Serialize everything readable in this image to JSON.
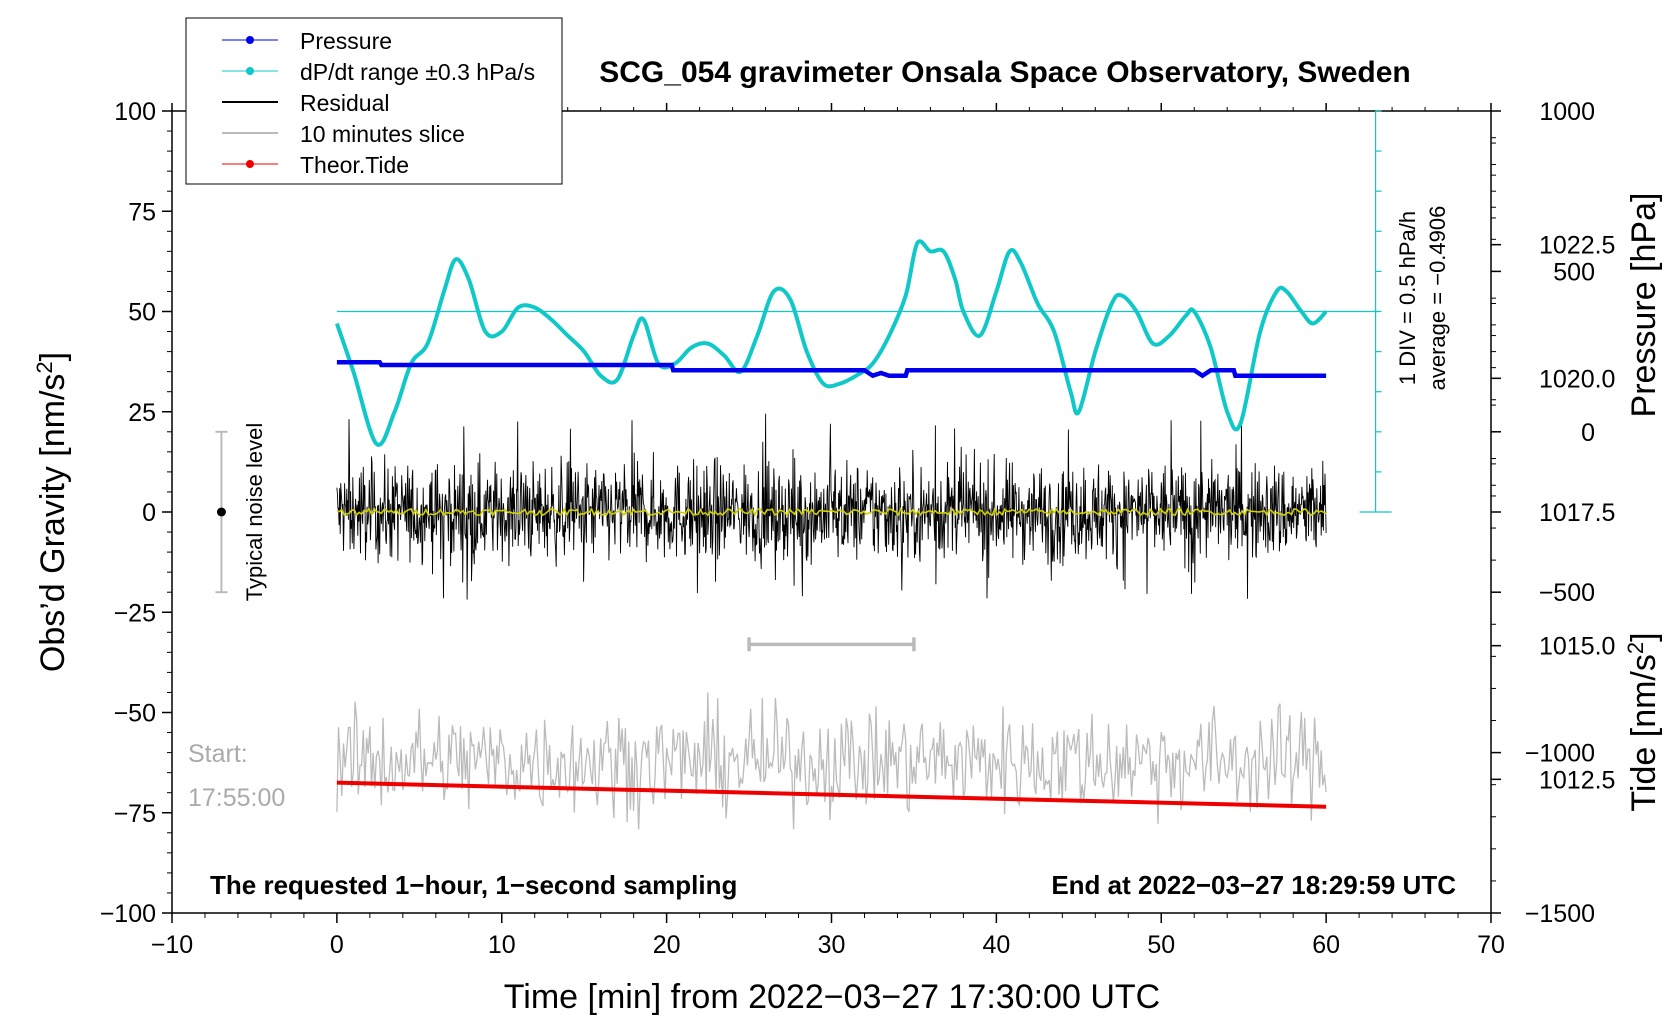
{
  "chart_data": {
    "type": "line",
    "title": "SCG_054 gravimeter Onsala Space Observatory, Sweden",
    "xlabel": "Time [min] from 2022−03−27 17:30:00 UTC",
    "ylabel_left": "Obs’d Gravity [nm/s²]",
    "ylabel_left_main": "Obs’d Gravity [nm/s",
    "ylabel_left_sup": "2",
    "ylabel_left_end": "]",
    "ylabel_right_pressure": "Pressure [hPa]",
    "ylabel_right_tide": "Tide [nm/s²]",
    "ylabel_right_tide_main": "Tide [nm/s",
    "ylabel_right_tide_sup": "2",
    "ylabel_right_tide_end": "]",
    "xlim": [
      -10,
      70
    ],
    "ylim": [
      -100,
      100
    ],
    "pressure_ylim": [
      1010.0,
      1025.0
    ],
    "tide_ylim": [
      -1500,
      1000
    ],
    "x_ticks": [
      -10,
      0,
      10,
      20,
      30,
      40,
      50,
      60,
      70
    ],
    "x_tick_labels": [
      "−10",
      "0",
      "10",
      "20",
      "30",
      "40",
      "50",
      "60",
      "70"
    ],
    "y_ticks": [
      100,
      75,
      50,
      25,
      0,
      -25,
      -50,
      -75,
      -100
    ],
    "y_tick_labels": [
      "100",
      "75",
      "50",
      "25",
      "0",
      "−25",
      "−50",
      "−75",
      "−100"
    ],
    "pressure_ticks": [
      1022.5,
      1020.0,
      1017.5,
      1015.0,
      1012.5
    ],
    "pressure_tick_labels": [
      "1022.5",
      "1020.0",
      "1017.5",
      "1015.0",
      "1012.5"
    ],
    "tide_ticks": [
      1000,
      500,
      0,
      -500,
      -1000,
      -1500
    ],
    "tide_tick_labels": [
      "1000",
      "500",
      "0",
      "−500",
      "−1000",
      "−1500"
    ],
    "legend": [
      {
        "label": "Pressure",
        "color": "#0000ee",
        "marker": true
      },
      {
        "label": "dP/dt range ±0.3 hPa/s",
        "color": "#10c8c8",
        "marker": true
      },
      {
        "label": "Residual",
        "color": "#000000",
        "marker": false
      },
      {
        "label": "10 minutes slice",
        "color": "#bbbbbb",
        "marker": false
      },
      {
        "label": "Theor.Tide",
        "color": "#ee0000",
        "marker": true
      }
    ],
    "series": [
      {
        "name": "Pressure",
        "color": "#0000ee",
        "x": [
          0,
          2.6,
          2.7,
          20.3,
          20.4,
          32,
          32.5,
          33,
          33.5,
          34.5,
          34.6,
          52,
          52.5,
          53,
          54.4,
          54.5,
          60
        ],
        "values": [
          1020.3,
          1020.3,
          1020.25,
          1020.25,
          1020.15,
          1020.15,
          1020.05,
          1020.1,
          1020.05,
          1020.05,
          1020.15,
          1020.15,
          1020.05,
          1020.15,
          1020.15,
          1020.05,
          1020.05
        ]
      },
      {
        "name": "dP/dt",
        "color": "#10c8c8",
        "reference_level": 50,
        "x": [
          0,
          1,
          2.4,
          3.5,
          4.5,
          5.5,
          6.5,
          7.2,
          8,
          9,
          10,
          11,
          12,
          13,
          14,
          15,
          16,
          17,
          18,
          18.6,
          19.5,
          20.5,
          21.5,
          22.5,
          23.5,
          24.5,
          25.5,
          26.5,
          27.5,
          28.5,
          29.5,
          30.5,
          31.5,
          32.5,
          33.5,
          34.5,
          35.2,
          36,
          36.8,
          37.5,
          38,
          39,
          40,
          40.8,
          41.5,
          42.5,
          43.5,
          44.5,
          45,
          46,
          47,
          47.6,
          48.5,
          49.5,
          50.5,
          51.5,
          52,
          53,
          54,
          54.8,
          56,
          57,
          57.6,
          58.5,
          59.2,
          60
        ],
        "values": [
          47,
          35,
          17,
          25,
          37,
          42,
          55,
          63,
          58,
          45,
          45,
          51,
          51,
          48,
          44,
          40,
          34,
          33,
          44,
          48,
          37,
          37,
          41,
          42,
          39,
          35,
          44,
          55,
          53,
          40,
          32,
          32,
          34,
          37,
          44,
          54,
          67,
          65,
          65,
          58,
          50,
          44,
          55,
          65,
          62,
          52,
          45,
          30,
          25,
          40,
          52,
          54,
          50,
          42,
          44,
          49,
          50,
          41,
          25,
          22,
          45,
          55,
          55,
          50,
          47,
          50
        ]
      },
      {
        "name": "Residual",
        "color": "#000000",
        "x_range": [
          0,
          60
        ],
        "noise_amplitude": 11,
        "max_spike": 25,
        "min_spike": -22
      },
      {
        "name": "Residual smoothed",
        "color": "#d0d000",
        "x_range": [
          0,
          60
        ],
        "values_level": 0
      },
      {
        "name": "10 minutes slice",
        "color": "#bbbbbb",
        "x_range": [
          0,
          60
        ],
        "center": -62,
        "amplitude_range": [
          -85,
          -45
        ]
      },
      {
        "name": "Theor.Tide",
        "color": "#ee0000",
        "x": [
          0,
          60
        ],
        "values": [
          -67.5,
          -73.5
        ]
      }
    ],
    "noise_bar": {
      "label": "Typical noise level",
      "x": -7,
      "center": 0,
      "low": -20,
      "high": 20
    },
    "slice_marker": {
      "x_start": 25,
      "x_end": 35,
      "y": -33
    },
    "pressure_scale": {
      "label_div": "1 DIV = 0.5 hPa/h",
      "label_average": "average = −0.4906",
      "x": 63,
      "y_top": 100,
      "y_bottom": 0
    },
    "start_label_1": "Start:",
    "start_label_2": "17:55:00",
    "footer_left": "The requested 1−hour, 1−second sampling",
    "footer_right": "End at 2022−03−27 18:29:59 UTC"
  }
}
